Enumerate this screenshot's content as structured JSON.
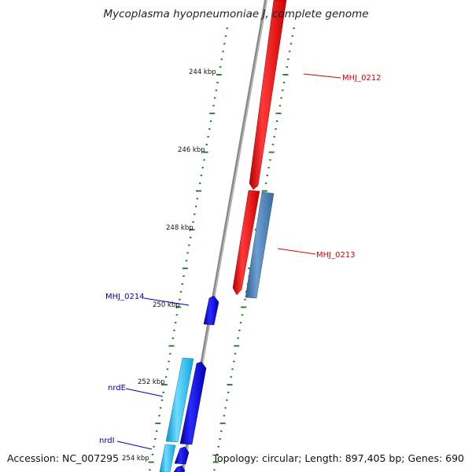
{
  "title": "Mycoplasma hyopneumoniae J, complete genome",
  "footer": {
    "accession": "Accession: NC_007295",
    "summary": "Topology: circular; Length: 897,405 bp; Genes: 690"
  },
  "scale_labels": [
    "244 kbp",
    "246 kbp",
    "248 kbp",
    "250 kbp",
    "252 kbp",
    "254 kbp"
  ],
  "gene_labels": {
    "mhj0212": "MHJ_0212",
    "mhj0213": "MHJ_0213",
    "mhj0214": "MHJ_0214",
    "nrde": "nrdE",
    "nrdi": "nrdI"
  },
  "colors": {
    "backbone": "#8a8a8a",
    "gene_red": "#ee0000",
    "gene_steel": "#4a7fb5",
    "gene_blue": "#1010dd",
    "gene_cyan": "#18b4ee",
    "label_red": "#dd0000",
    "label_blue": "#0000bb",
    "tick_green": "#1a7a1a"
  }
}
